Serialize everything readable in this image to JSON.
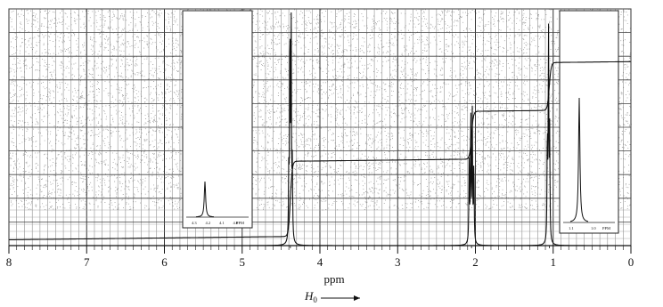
{
  "chart_data": {
    "type": "line",
    "xlabel": "ppm",
    "field_label": "H",
    "field_subscript": "0",
    "xlim": [
      8,
      0
    ],
    "x_ticks": [
      "8",
      "7",
      "6",
      "5",
      "4",
      "3",
      "2",
      "1",
      "0"
    ],
    "grid": true,
    "reversed_x": true,
    "peaks": [
      {
        "ppm": 4.38,
        "height": 1.0,
        "multiplicity": "quartet",
        "lines": [
          4.4,
          4.385,
          4.37,
          4.355
        ],
        "rel_heights": [
          0.33,
          1.0,
          1.0,
          0.33
        ]
      },
      {
        "ppm": 2.05,
        "height": 0.62,
        "multiplicity": "singlet",
        "lines": [
          2.08,
          2.06,
          2.04,
          2.02
        ],
        "rel_heights": [
          0.65,
          1.0,
          0.95,
          0.6
        ]
      },
      {
        "ppm": 1.05,
        "height": 0.98,
        "multiplicity": "triplet",
        "lines": [
          1.075,
          1.06,
          1.045
        ],
        "rel_heights": [
          0.5,
          1.0,
          0.5
        ]
      }
    ],
    "integration_steps": [
      {
        "ppm": 4.38,
        "from": 0.04,
        "to": 0.37
      },
      {
        "ppm": 2.05,
        "from": 0.46,
        "to": 0.67
      },
      {
        "ppm": 1.05,
        "from": 0.74,
        "to": 0.95
      }
    ],
    "insets": [
      {
        "label": "quartet-expansion",
        "tick_labels": [
          "4.3",
          "4.2",
          "4.1",
          "4.0"
        ],
        "unit": "PPM",
        "shows_peak": 4.38
      },
      {
        "label": "triplet-expansion",
        "tick_labels": [
          "1.1",
          "1.0"
        ],
        "unit": "PPM",
        "shows_peak": 1.05
      }
    ]
  }
}
